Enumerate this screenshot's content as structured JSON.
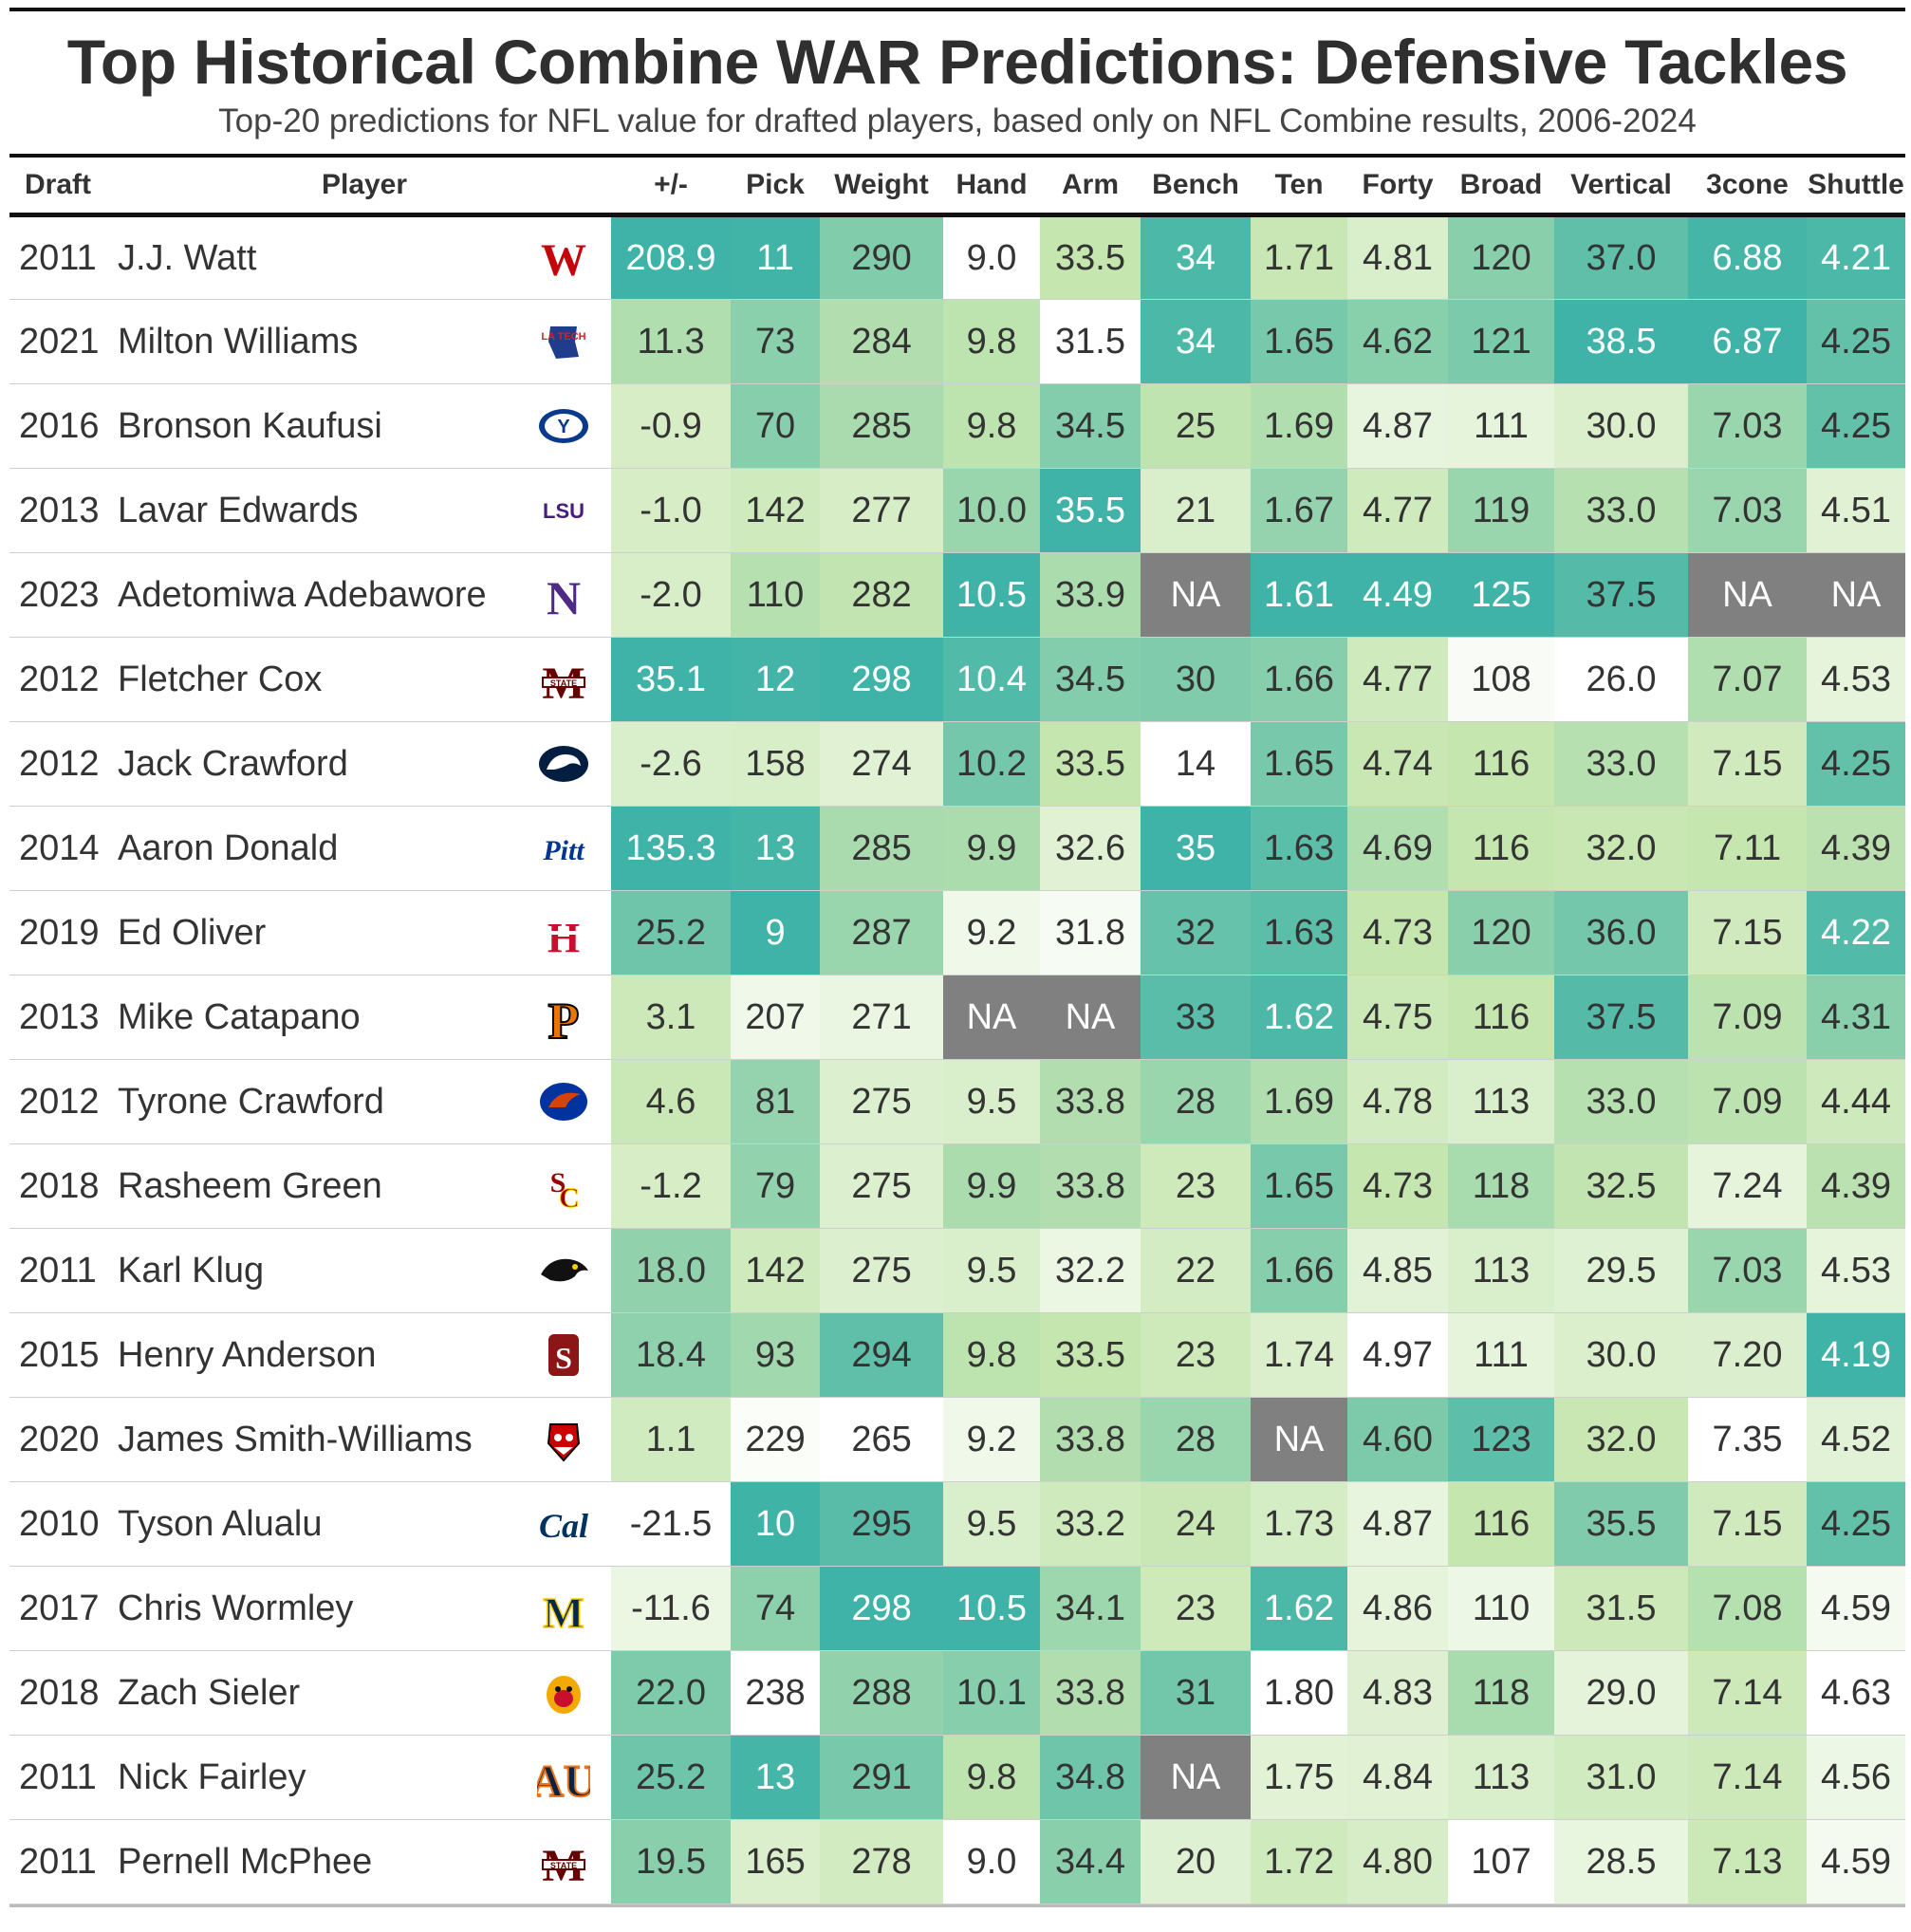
{
  "title": "Top Historical Combine WAR Predictions: Defensive Tackles",
  "subtitle": "Top-20 predictions for NFL value for drafted players, based only on NFL Combine results, 2006-2024",
  "columns": [
    "Draft",
    "Player",
    "+/-",
    "Pick",
    "Weight",
    "Hand",
    "Arm",
    "Bench",
    "Ten",
    "Forty",
    "Broad",
    "Vertical",
    "3cone",
    "Shuttle"
  ],
  "color_scale": {
    "low": "#ffffff",
    "mid": "#c6e6b0",
    "high": "#3fb3a7"
  },
  "na_color": "#808080",
  "chart_data": {
    "type": "table",
    "title": "Top Historical Combine WAR Predictions: Defensive Tackles",
    "rows": [
      {
        "draft": "2011",
        "player": "J.J. Watt",
        "logo": "wisconsin-logo",
        "pm": "208.9",
        "pick": "11",
        "weight": "290",
        "hand": "9.0",
        "arm": "33.5",
        "bench": "34",
        "ten": "1.71",
        "forty": "4.81",
        "broad": "120",
        "vertical": "37.0",
        "cone": "6.88",
        "shuttle": "4.21"
      },
      {
        "draft": "2021",
        "player": "Milton Williams",
        "logo": "louisiana-tech-logo",
        "pm": "11.3",
        "pick": "73",
        "weight": "284",
        "hand": "9.8",
        "arm": "31.5",
        "bench": "34",
        "ten": "1.65",
        "forty": "4.62",
        "broad": "121",
        "vertical": "38.5",
        "cone": "6.87",
        "shuttle": "4.25"
      },
      {
        "draft": "2016",
        "player": "Bronson Kaufusi",
        "logo": "byu-logo",
        "pm": "-0.9",
        "pick": "70",
        "weight": "285",
        "hand": "9.8",
        "arm": "34.5",
        "bench": "25",
        "ten": "1.69",
        "forty": "4.87",
        "broad": "111",
        "vertical": "30.0",
        "cone": "7.03",
        "shuttle": "4.25"
      },
      {
        "draft": "2013",
        "player": "Lavar Edwards",
        "logo": "lsu-logo",
        "pm": "-1.0",
        "pick": "142",
        "weight": "277",
        "hand": "10.0",
        "arm": "35.5",
        "bench": "21",
        "ten": "1.67",
        "forty": "4.77",
        "broad": "119",
        "vertical": "33.0",
        "cone": "7.03",
        "shuttle": "4.51"
      },
      {
        "draft": "2023",
        "player": "Adetomiwa Adebawore",
        "logo": "northwestern-logo",
        "pm": "-2.0",
        "pick": "110",
        "weight": "282",
        "hand": "10.5",
        "arm": "33.9",
        "bench": "NA",
        "ten": "1.61",
        "forty": "4.49",
        "broad": "125",
        "vertical": "37.5",
        "cone": "NA",
        "shuttle": "NA"
      },
      {
        "draft": "2012",
        "player": "Fletcher Cox",
        "logo": "mississippi-state-logo",
        "pm": "35.1",
        "pick": "12",
        "weight": "298",
        "hand": "10.4",
        "arm": "34.5",
        "bench": "30",
        "ten": "1.66",
        "forty": "4.77",
        "broad": "108",
        "vertical": "26.0",
        "cone": "7.07",
        "shuttle": "4.53"
      },
      {
        "draft": "2012",
        "player": "Jack Crawford",
        "logo": "penn-state-logo",
        "pm": "-2.6",
        "pick": "158",
        "weight": "274",
        "hand": "10.2",
        "arm": "33.5",
        "bench": "14",
        "ten": "1.65",
        "forty": "4.74",
        "broad": "116",
        "vertical": "33.0",
        "cone": "7.15",
        "shuttle": "4.25"
      },
      {
        "draft": "2014",
        "player": "Aaron Donald",
        "logo": "pitt-logo",
        "pm": "135.3",
        "pick": "13",
        "weight": "285",
        "hand": "9.9",
        "arm": "32.6",
        "bench": "35",
        "ten": "1.63",
        "forty": "4.69",
        "broad": "116",
        "vertical": "32.0",
        "cone": "7.11",
        "shuttle": "4.39"
      },
      {
        "draft": "2019",
        "player": "Ed Oliver",
        "logo": "houston-logo",
        "pm": "25.2",
        "pick": "9",
        "weight": "287",
        "hand": "9.2",
        "arm": "31.8",
        "bench": "32",
        "ten": "1.63",
        "forty": "4.73",
        "broad": "120",
        "vertical": "36.0",
        "cone": "7.15",
        "shuttle": "4.22"
      },
      {
        "draft": "2013",
        "player": "Mike Catapano",
        "logo": "princeton-logo",
        "pm": "3.1",
        "pick": "207",
        "weight": "271",
        "hand": "NA",
        "arm": "NA",
        "bench": "33",
        "ten": "1.62",
        "forty": "4.75",
        "broad": "116",
        "vertical": "37.5",
        "cone": "7.09",
        "shuttle": "4.31"
      },
      {
        "draft": "2012",
        "player": "Tyrone Crawford",
        "logo": "boise-state-logo",
        "pm": "4.6",
        "pick": "81",
        "weight": "275",
        "hand": "9.5",
        "arm": "33.8",
        "bench": "28",
        "ten": "1.69",
        "forty": "4.78",
        "broad": "113",
        "vertical": "33.0",
        "cone": "7.09",
        "shuttle": "4.44"
      },
      {
        "draft": "2018",
        "player": "Rasheem Green",
        "logo": "usc-logo",
        "pm": "-1.2",
        "pick": "79",
        "weight": "275",
        "hand": "9.9",
        "arm": "33.8",
        "bench": "23",
        "ten": "1.65",
        "forty": "4.73",
        "broad": "118",
        "vertical": "32.5",
        "cone": "7.24",
        "shuttle": "4.39"
      },
      {
        "draft": "2011",
        "player": "Karl Klug",
        "logo": "iowa-logo",
        "pm": "18.0",
        "pick": "142",
        "weight": "275",
        "hand": "9.5",
        "arm": "32.2",
        "bench": "22",
        "ten": "1.66",
        "forty": "4.85",
        "broad": "113",
        "vertical": "29.5",
        "cone": "7.03",
        "shuttle": "4.53"
      },
      {
        "draft": "2015",
        "player": "Henry Anderson",
        "logo": "stanford-logo",
        "pm": "18.4",
        "pick": "93",
        "weight": "294",
        "hand": "9.8",
        "arm": "33.5",
        "bench": "23",
        "ten": "1.74",
        "forty": "4.97",
        "broad": "111",
        "vertical": "30.0",
        "cone": "7.20",
        "shuttle": "4.19"
      },
      {
        "draft": "2020",
        "player": "James Smith-Williams",
        "logo": "nc-state-logo",
        "pm": "1.1",
        "pick": "229",
        "weight": "265",
        "hand": "9.2",
        "arm": "33.8",
        "bench": "28",
        "ten": "NA",
        "forty": "4.60",
        "broad": "123",
        "vertical": "32.0",
        "cone": "7.35",
        "shuttle": "4.52"
      },
      {
        "draft": "2010",
        "player": "Tyson Alualu",
        "logo": "cal-logo",
        "pm": "-21.5",
        "pick": "10",
        "weight": "295",
        "hand": "9.5",
        "arm": "33.2",
        "bench": "24",
        "ten": "1.73",
        "forty": "4.87",
        "broad": "116",
        "vertical": "35.5",
        "cone": "7.15",
        "shuttle": "4.25"
      },
      {
        "draft": "2017",
        "player": "Chris Wormley",
        "logo": "michigan-logo",
        "pm": "-11.6",
        "pick": "74",
        "weight": "298",
        "hand": "10.5",
        "arm": "34.1",
        "bench": "23",
        "ten": "1.62",
        "forty": "4.86",
        "broad": "110",
        "vertical": "31.5",
        "cone": "7.08",
        "shuttle": "4.59"
      },
      {
        "draft": "2018",
        "player": "Zach Sieler",
        "logo": "ferris-state-logo",
        "pm": "22.0",
        "pick": "238",
        "weight": "288",
        "hand": "10.1",
        "arm": "33.8",
        "bench": "31",
        "ten": "1.80",
        "forty": "4.83",
        "broad": "118",
        "vertical": "29.0",
        "cone": "7.14",
        "shuttle": "4.63"
      },
      {
        "draft": "2011",
        "player": "Nick Fairley",
        "logo": "auburn-logo",
        "pm": "25.2",
        "pick": "13",
        "weight": "291",
        "hand": "9.8",
        "arm": "34.8",
        "bench": "NA",
        "ten": "1.75",
        "forty": "4.84",
        "broad": "113",
        "vertical": "31.0",
        "cone": "7.14",
        "shuttle": "4.56"
      },
      {
        "draft": "2011",
        "player": "Pernell McPhee",
        "logo": "mississippi-state-logo",
        "pm": "19.5",
        "pick": "165",
        "weight": "278",
        "hand": "9.0",
        "arm": "34.4",
        "bench": "20",
        "ten": "1.72",
        "forty": "4.80",
        "broad": "107",
        "vertical": "28.5",
        "cone": "7.13",
        "shuttle": "4.59"
      }
    ],
    "color_direction": {
      "pm": "higher",
      "pick": "lower",
      "weight": "higher",
      "hand": "higher",
      "arm": "higher",
      "bench": "higher",
      "ten": "lower",
      "forty": "lower",
      "broad": "higher",
      "vertical": "higher",
      "cone": "lower",
      "shuttle": "lower"
    }
  }
}
